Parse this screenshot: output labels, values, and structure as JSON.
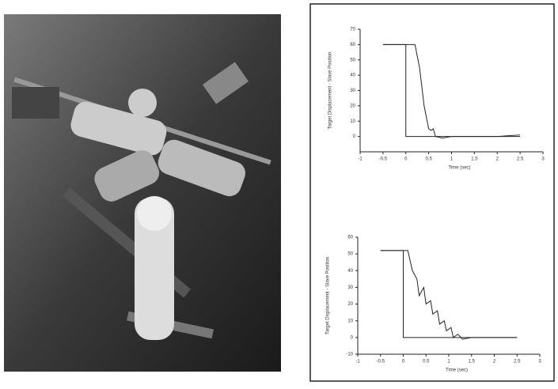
{
  "chart_data": [
    {
      "type": "line",
      "ylabel": "Target Displacement - Slave Position",
      "xlabel": "Time (sec)",
      "xlim": [
        -1,
        3
      ],
      "xticks": [
        -1,
        -0.5,
        0,
        0.5,
        1,
        1.5,
        2,
        2.5,
        3
      ],
      "ylim": [
        -10,
        70
      ],
      "yticks": [
        0,
        10,
        20,
        30,
        40,
        50,
        60,
        70
      ],
      "series": [
        {
          "color": "#222222",
          "x": [
            -0.5,
            0,
            0,
            2.5
          ],
          "values": [
            60,
            60,
            0,
            0
          ]
        },
        {
          "color": "#222222",
          "x": [
            -0.5,
            0.2,
            0.3,
            0.4,
            0.5,
            0.55,
            0.6,
            0.65,
            0.8,
            1,
            1.5,
            2,
            2.5
          ],
          "values": [
            60,
            60,
            45,
            20,
            5,
            4,
            5,
            0,
            -1,
            0,
            0,
            0,
            1
          ]
        }
      ]
    },
    {
      "type": "line",
      "ylabel": "Target Displacement - Slave Position",
      "xlabel": "Time (sec)",
      "xlim": [
        -1,
        3
      ],
      "xticks": [
        -1,
        -0.5,
        0,
        0.5,
        1,
        1.5,
        2,
        2.5,
        3
      ],
      "ylim": [
        -10,
        60
      ],
      "yticks": [
        -10,
        0,
        10,
        20,
        30,
        40,
        50,
        60
      ],
      "series": [
        {
          "color": "#222222",
          "x": [
            -0.5,
            0,
            0,
            2.5
          ],
          "values": [
            52,
            52,
            0,
            0
          ]
        },
        {
          "color": "#222222",
          "x": [
            -0.5,
            0.1,
            0.2,
            0.3,
            0.35,
            0.45,
            0.5,
            0.6,
            0.65,
            0.75,
            0.8,
            0.9,
            0.95,
            1.05,
            1.1,
            1.2,
            1.3,
            1.5,
            2,
            2.5
          ],
          "values": [
            52,
            52,
            40,
            35,
            25,
            30,
            20,
            22,
            14,
            16,
            8,
            10,
            4,
            6,
            0,
            2,
            -1,
            0,
            0,
            0
          ]
        }
      ]
    }
  ]
}
